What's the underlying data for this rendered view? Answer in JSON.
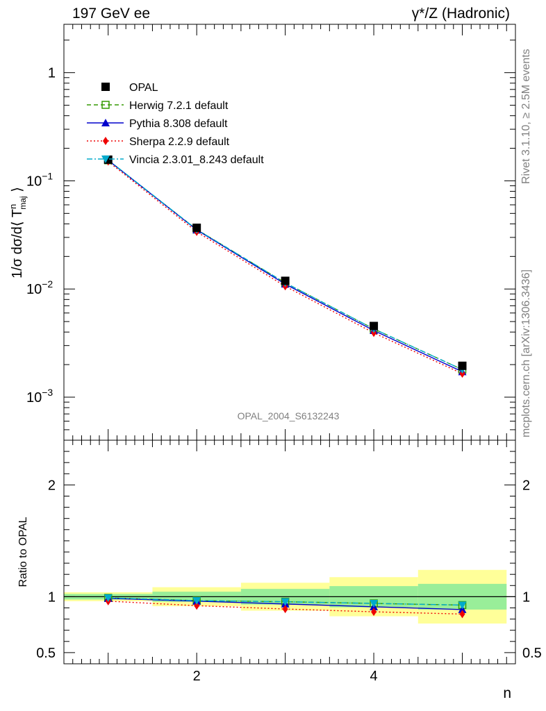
{
  "header": {
    "left_title": "197 GeV ee",
    "right_title": "γ*/Z (Hadronic)"
  },
  "side_labels": {
    "rivet": "Rivet 3.1.10, ≥ 2.5M events",
    "mcplots": "mcplots.cern.ch [arXiv:1306.3436]"
  },
  "watermark": "OPAL_2004_S6132243",
  "chart_data": [
    {
      "type": "line",
      "panel": "main",
      "ylabel": "1/σ dσ/d⟨ T^n_maj ⟩",
      "yscale": "log",
      "ylim": [
        0.0004,
        2.8
      ],
      "xlim": [
        0.5,
        5.6
      ],
      "x": [
        1,
        2,
        3,
        4,
        5
      ],
      "bins": [
        [
          0.5,
          1.5
        ],
        [
          1.5,
          2.5
        ],
        [
          2.5,
          3.5
        ],
        [
          3.5,
          4.5
        ],
        [
          4.5,
          5.5
        ]
      ],
      "y_ticks": [
        {
          "value": 0.001,
          "label_base": "10",
          "label_exp": "−3"
        },
        {
          "value": 0.01,
          "label_base": "10",
          "label_exp": "−2"
        },
        {
          "value": 0.1,
          "label_base": "10",
          "label_exp": "−1"
        },
        {
          "value": 1,
          "label_base": "1",
          "label_exp": ""
        }
      ],
      "legend_position": "top-left",
      "series": [
        {
          "name": "OPAL",
          "style": "data",
          "marker": "square-filled",
          "color": "#000000",
          "values": [
            0.157,
            0.0368,
            0.0119,
            0.00455,
            0.00195
          ]
        },
        {
          "name": "Herwig 7.2.1 default",
          "style": "dashed",
          "marker": "square-open",
          "color": "#339900",
          "values": [
            0.155,
            0.0355,
            0.0114,
            0.00428,
            0.0018
          ]
        },
        {
          "name": "Pythia 8.308 default",
          "style": "solid",
          "marker": "triangle-up",
          "color": "#0000cc",
          "values": [
            0.155,
            0.0352,
            0.0111,
            0.00413,
            0.00172
          ]
        },
        {
          "name": "Sherpa 2.2.9 default",
          "style": "dotted",
          "marker": "diamond",
          "color": "#ee0000",
          "values": [
            0.151,
            0.0338,
            0.0106,
            0.00393,
            0.00165
          ]
        },
        {
          "name": "Vincia 2.3.01_8.243 default",
          "style": "dashdot",
          "marker": "triangle-down",
          "color": "#00aacc",
          "values": [
            0.156,
            0.0355,
            0.0114,
            0.00428,
            0.0018
          ]
        }
      ]
    },
    {
      "type": "line",
      "panel": "ratio",
      "ylabel": "Ratio to OPAL",
      "xlabel": "n",
      "ylim": [
        0.4,
        2.4
      ],
      "xlim": [
        0.5,
        5.6
      ],
      "x": [
        1,
        2,
        3,
        4,
        5
      ],
      "x_ticks": [
        2,
        4
      ],
      "y_ticks": [
        {
          "value": 0.5,
          "label": "0.5"
        },
        {
          "value": 1,
          "label": "1"
        },
        {
          "value": 2,
          "label": "2"
        }
      ],
      "reference_line": 1,
      "bands": {
        "bins": [
          [
            0.5,
            1.5
          ],
          [
            1.5,
            2.5
          ],
          [
            2.5,
            3.5
          ],
          [
            3.5,
            4.5
          ],
          [
            4.5,
            5.5
          ]
        ],
        "inner": {
          "color": "#99ee99",
          "lo": [
            0.975,
            0.955,
            0.93,
            0.905,
            0.885
          ],
          "hi": [
            1.025,
            1.045,
            1.07,
            1.095,
            1.115
          ]
        },
        "outer": {
          "color": "#ffff99",
          "lo": [
            0.96,
            0.915,
            0.875,
            0.825,
            0.76
          ],
          "hi": [
            1.04,
            1.085,
            1.125,
            1.175,
            1.24
          ]
        }
      },
      "series": [
        {
          "name": "Herwig 7.2.1 default",
          "style": "dashed",
          "marker": "square-open",
          "color": "#339900",
          "values": [
            0.99,
            0.965,
            0.955,
            0.94,
            0.925
          ]
        },
        {
          "name": "Pythia 8.308 default",
          "style": "solid",
          "marker": "triangle-up",
          "color": "#0000cc",
          "values": [
            0.985,
            0.96,
            0.935,
            0.91,
            0.885
          ]
        },
        {
          "name": "Sherpa 2.2.9 default",
          "style": "dotted",
          "marker": "diamond",
          "color": "#ee0000",
          "values": [
            0.96,
            0.92,
            0.89,
            0.865,
            0.845
          ]
        },
        {
          "name": "Vincia 2.3.01_8.243 default",
          "style": "dashdot",
          "marker": "triangle-down",
          "color": "#00aacc",
          "values": [
            0.99,
            0.965,
            0.955,
            0.94,
            0.925
          ]
        }
      ]
    }
  ]
}
